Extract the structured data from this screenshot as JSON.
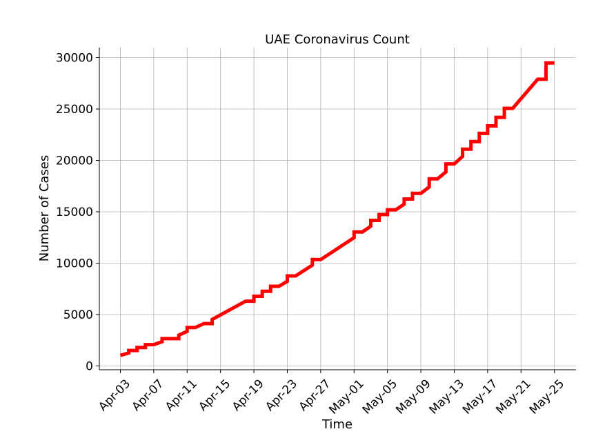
{
  "chart_data": {
    "type": "line",
    "title": "UAE Coronavirus Count",
    "xlabel": "Time",
    "ylabel": "Number of Cases",
    "ylim": [
      -400,
      31000
    ],
    "grid": true,
    "x_ticks": [
      "Apr-03",
      "Apr-07",
      "Apr-11",
      "Apr-15",
      "Apr-19",
      "Apr-23",
      "Apr-27",
      "May-01",
      "May-05",
      "May-09",
      "May-13",
      "May-17",
      "May-21",
      "May-25"
    ],
    "y_ticks": [
      0,
      5000,
      10000,
      15000,
      20000,
      25000,
      30000
    ],
    "series": [
      {
        "color": "#ff0000",
        "points": [
          [
            "2020-04-03",
            1024
          ],
          [
            "2020-04-04",
            1264
          ],
          [
            "2020-04-04",
            1505
          ],
          [
            "2020-04-05",
            1505
          ],
          [
            "2020-04-05",
            1799
          ],
          [
            "2020-04-06",
            1799
          ],
          [
            "2020-04-06",
            2076
          ],
          [
            "2020-04-07",
            2076
          ],
          [
            "2020-04-08",
            2359
          ],
          [
            "2020-04-08",
            2659
          ],
          [
            "2020-04-10",
            2659
          ],
          [
            "2020-04-10",
            2990
          ],
          [
            "2020-04-11",
            3360
          ],
          [
            "2020-04-11",
            3736
          ],
          [
            "2020-04-12",
            3736
          ],
          [
            "2020-04-13",
            4123
          ],
          [
            "2020-04-14",
            4123
          ],
          [
            "2020-04-14",
            4521
          ],
          [
            "2020-04-18",
            6302
          ],
          [
            "2020-04-19",
            6302
          ],
          [
            "2020-04-19",
            6781
          ],
          [
            "2020-04-20",
            6781
          ],
          [
            "2020-04-20",
            7265
          ],
          [
            "2020-04-21",
            7265
          ],
          [
            "2020-04-21",
            7755
          ],
          [
            "2020-04-22",
            7755
          ],
          [
            "2020-04-23",
            8238
          ],
          [
            "2020-04-23",
            8756
          ],
          [
            "2020-04-24",
            8756
          ],
          [
            "2020-04-26",
            9813
          ],
          [
            "2020-04-26",
            10349
          ],
          [
            "2020-04-27",
            10349
          ],
          [
            "2020-05-01",
            12481
          ],
          [
            "2020-05-01",
            13038
          ],
          [
            "2020-05-02",
            13038
          ],
          [
            "2020-05-03",
            13599
          ],
          [
            "2020-05-03",
            14163
          ],
          [
            "2020-05-04",
            14163
          ],
          [
            "2020-05-04",
            14730
          ],
          [
            "2020-05-05",
            14730
          ],
          [
            "2020-05-05",
            15192
          ],
          [
            "2020-05-06",
            15192
          ],
          [
            "2020-05-07",
            15738
          ],
          [
            "2020-05-07",
            16240
          ],
          [
            "2020-05-08",
            16240
          ],
          [
            "2020-05-08",
            16793
          ],
          [
            "2020-05-09",
            16793
          ],
          [
            "2020-05-10",
            17417
          ],
          [
            "2020-05-10",
            18198
          ],
          [
            "2020-05-11",
            18198
          ],
          [
            "2020-05-12",
            18878
          ],
          [
            "2020-05-12",
            19661
          ],
          [
            "2020-05-13",
            19661
          ],
          [
            "2020-05-14",
            20386
          ],
          [
            "2020-05-14",
            21084
          ],
          [
            "2020-05-15",
            21084
          ],
          [
            "2020-05-15",
            21831
          ],
          [
            "2020-05-16",
            21831
          ],
          [
            "2020-05-16",
            22627
          ],
          [
            "2020-05-17",
            22627
          ],
          [
            "2020-05-17",
            23358
          ],
          [
            "2020-05-18",
            23358
          ],
          [
            "2020-05-18",
            24190
          ],
          [
            "2020-05-19",
            24190
          ],
          [
            "2020-05-19",
            25063
          ],
          [
            "2020-05-20",
            25063
          ],
          [
            "2020-05-23",
            27892
          ],
          [
            "2020-05-24",
            27892
          ],
          [
            "2020-05-24",
            29485
          ],
          [
            "2020-05-25",
            29485
          ]
        ]
      }
    ]
  }
}
